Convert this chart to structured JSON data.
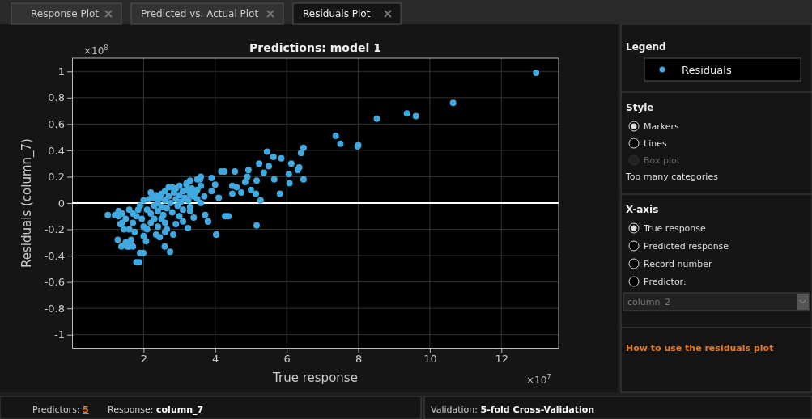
{
  "chart_data": {
    "type": "scatter",
    "title": "Predictions: model 1",
    "xlabel": "True response",
    "ylabel": "Residuals (column_7)",
    "legend_title": "Legend",
    "legend": "right",
    "grid": true,
    "marker": "circle",
    "xlim": [
      0,
      13.6
    ],
    "xticks": [
      2,
      4,
      6,
      8,
      10,
      12
    ],
    "ylim": [
      -1.1,
      1.1
    ],
    "yticks": [
      -1,
      -0.8,
      -0.6,
      -0.4,
      -0.2,
      0,
      0.2,
      0.4,
      0.6,
      0.8,
      1
    ],
    "ref_lines": [
      {
        "axis": "y",
        "value": 0,
        "color": "#ffffff"
      }
    ],
    "series": [
      {
        "name": "Residuals",
        "color": "#3fa9e0",
        "x": [
          1.0,
          1.2,
          1.3,
          1.3,
          1.35,
          1.4,
          1.4,
          1.45,
          1.5,
          1.5,
          1.55,
          1.6,
          1.6,
          1.6,
          1.65,
          1.7,
          1.7,
          1.7,
          1.75,
          1.8,
          1.8,
          1.85,
          1.88,
          1.9,
          1.9,
          1.95,
          1.99,
          2.0,
          2.0,
          2.07,
          1.28,
          1.57,
          1.38,
          2.59,
          2.74,
          2.83,
          3.24,
          3.72,
          3.8,
          4.03,
          4.28,
          2.8,
          4.17,
          3.58,
          2.1,
          2.15,
          2.2,
          2.25,
          2.3,
          2.3,
          2.35,
          2.4,
          2.4,
          2.45,
          2.5,
          2.5,
          2.55,
          2.6,
          2.6,
          2.65,
          2.7,
          2.7,
          2.75,
          2.8,
          2.85,
          2.9,
          2.9,
          2.95,
          3.0,
          3.0,
          3.05,
          3.1,
          3.1,
          3.15,
          3.2,
          3.2,
          3.25,
          3.3,
          3.3,
          3.35,
          3.4,
          3.45,
          3.5,
          2.2,
          2.4,
          2.5,
          2.6,
          2.9,
          3.0,
          3.1,
          3.3,
          3.4,
          2.3,
          2.6,
          2.2,
          3.6,
          3.7,
          3.9,
          4.1,
          2.0,
          2.1,
          2.35,
          2.45,
          2.65,
          5.45,
          6.47,
          6.4,
          7.37,
          7.5,
          5.63,
          5.85,
          6.13,
          5.23,
          6.31,
          6.35,
          6.06,
          6.47,
          6.08,
          5.65,
          5.36,
          4.93,
          4.55,
          4.26,
          5.16,
          4.84,
          4.73,
          5.14,
          5.81,
          5.27,
          4.48,
          4.37,
          5.16,
          4.03,
          3.8,
          4.48,
          4.0,
          3.6,
          3.9,
          3.5,
          12.97,
          10.65,
          9.36,
          9.61,
          8.52,
          7.98,
          8.0,
          4.6,
          4.9,
          5.0,
          5.5,
          3.3,
          3.5,
          3.6,
          3.2
        ],
        "values": [
          -0.09,
          -0.09,
          -0.1,
          -0.06,
          -0.16,
          -0.08,
          -0.15,
          -0.2,
          -0.12,
          -0.3,
          -0.33,
          -0.05,
          -0.2,
          -0.33,
          -0.28,
          -0.33,
          -0.15,
          -0.08,
          -0.22,
          -0.45,
          -0.1,
          -0.05,
          -0.45,
          -0.38,
          -0.02,
          -0.12,
          -0.38,
          -0.25,
          0.02,
          -0.29,
          -0.28,
          -0.32,
          -0.33,
          -0.33,
          -0.37,
          -0.24,
          -0.19,
          -0.09,
          -0.14,
          -0.24,
          -0.1,
          0.12,
          0.24,
          0.18,
          -0.05,
          0.03,
          -0.08,
          0.05,
          -0.02,
          -0.12,
          0.06,
          0.0,
          -0.06,
          0.04,
          -0.03,
          0.07,
          -0.09,
          0.02,
          0.09,
          -0.04,
          0.05,
          0.12,
          0.0,
          -0.07,
          0.08,
          0.03,
          0.11,
          -0.02,
          0.06,
          0.13,
          0.01,
          0.09,
          -0.05,
          0.04,
          0.1,
          0.15,
          0.02,
          0.07,
          -0.03,
          0.11,
          0.05,
          0.08,
          0.03,
          -0.15,
          -0.18,
          -0.12,
          -0.22,
          -0.16,
          -0.1,
          -0.14,
          -0.06,
          -0.11,
          0.04,
          -0.15,
          0.08,
          0.0,
          0.05,
          0.09,
          0.04,
          -0.18,
          -0.2,
          -0.24,
          -0.26,
          -0.2,
          0.39,
          0.42,
          0.38,
          0.51,
          0.45,
          0.35,
          0.34,
          0.3,
          0.3,
          0.25,
          0.27,
          0.22,
          0.18,
          0.15,
          0.18,
          0.23,
          0.25,
          0.24,
          0.24,
          0.17,
          0.16,
          0.08,
          0.07,
          0.07,
          0.02,
          0.07,
          -0.1,
          -0.17,
          -0.24,
          -0.14,
          0.13,
          0.14,
          0.13,
          0.19,
          0.18,
          0.99,
          0.76,
          0.68,
          0.66,
          0.64,
          0.43,
          0.44,
          0.12,
          0.2,
          0.1,
          0.28,
          0.17,
          0.1,
          0.2,
          0.14
        ]
      }
    ],
    "annotations": [
      "×10$^{8}$",
      "×10$^{7}$",
      "Response Plot",
      "Predicted vs. Actual Plot",
      "Residuals Plot",
      "Style",
      "Markers",
      "Lines",
      "Box plot",
      "Too many categories",
      "X-axis",
      "True response",
      "Predicted response",
      "Record number",
      "Predictor:",
      "column_2",
      "How to use the residuals plot",
      "Predictors: 5",
      "Response: column_7",
      "Validation: 5-fold Cross-Validation"
    ]
  }
}
